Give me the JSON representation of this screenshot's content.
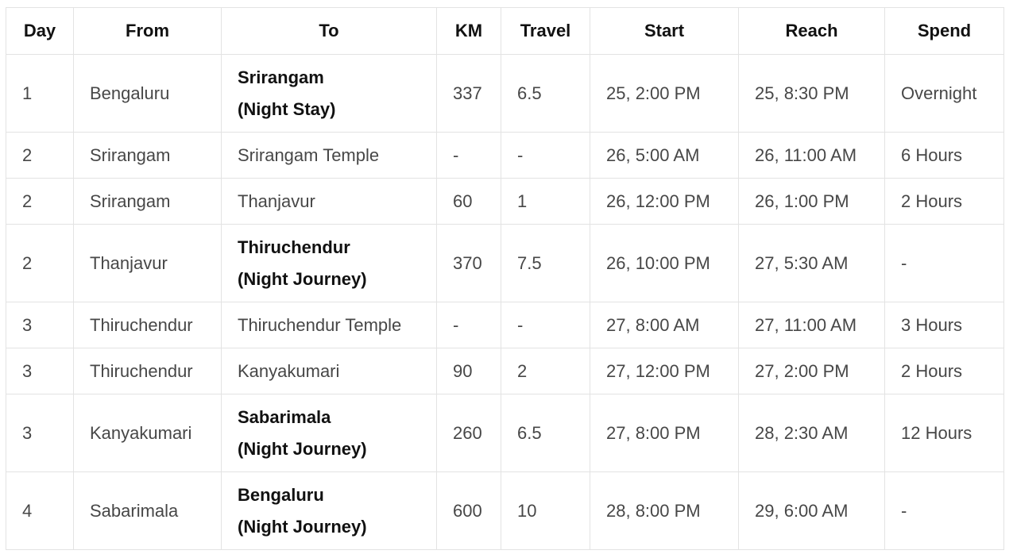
{
  "headers": {
    "day": "Day",
    "from": "From",
    "to": "To",
    "km": "KM",
    "travel": "Travel",
    "start": "Start",
    "reach": "Reach",
    "spend": "Spend"
  },
  "rows": [
    {
      "day": "1",
      "from": "Bengaluru",
      "to": "Srirangam",
      "to_note": "(Night Stay)",
      "bold": true,
      "km": "337",
      "travel": "6.5",
      "start": "25, 2:00 PM",
      "reach": "25, 8:30 PM",
      "spend": "Overnight"
    },
    {
      "day": "2",
      "from": "Srirangam",
      "to": "Srirangam Temple",
      "to_note": "",
      "bold": false,
      "km": "-",
      "travel": "-",
      "start": "26, 5:00 AM",
      "reach": "26, 11:00 AM",
      "spend": "6 Hours"
    },
    {
      "day": "2",
      "from": "Srirangam",
      "to": "Thanjavur",
      "to_note": "",
      "bold": false,
      "km": "60",
      "travel": "1",
      "start": "26, 12:00 PM",
      "reach": "26, 1:00 PM",
      "spend": "2 Hours"
    },
    {
      "day": "2",
      "from": "Thanjavur",
      "to": "Thiruchendur",
      "to_note": "(Night Journey)",
      "bold": true,
      "km": "370",
      "travel": "7.5",
      "start": "26, 10:00 PM",
      "reach": "27, 5:30 AM",
      "spend": "-"
    },
    {
      "day": "3",
      "from": "Thiruchendur",
      "to": "Thiruchendur Temple",
      "to_note": "",
      "bold": false,
      "km": "-",
      "travel": "-",
      "start": "27, 8:00 AM",
      "reach": "27, 11:00 AM",
      "spend": "3 Hours"
    },
    {
      "day": "3",
      "from": "Thiruchendur",
      "to": "Kanyakumari",
      "to_note": "",
      "bold": false,
      "km": "90",
      "travel": "2",
      "start": "27, 12:00 PM",
      "reach": "27, 2:00 PM",
      "spend": "2 Hours"
    },
    {
      "day": "3",
      "from": "Kanyakumari",
      "to": "Sabarimala",
      "to_note": "(Night Journey)",
      "bold": true,
      "km": "260",
      "travel": "6.5",
      "start": "27, 8:00 PM",
      "reach": "28, 2:30 AM",
      "spend": "12 Hours"
    },
    {
      "day": "4",
      "from": "Sabarimala",
      "to": "Bengaluru",
      "to_note": "(Night Journey)",
      "bold": true,
      "km": "600",
      "travel": "10",
      "start": "28, 8:00 PM",
      "reach": "29, 6:00 AM",
      "spend": "-"
    }
  ]
}
